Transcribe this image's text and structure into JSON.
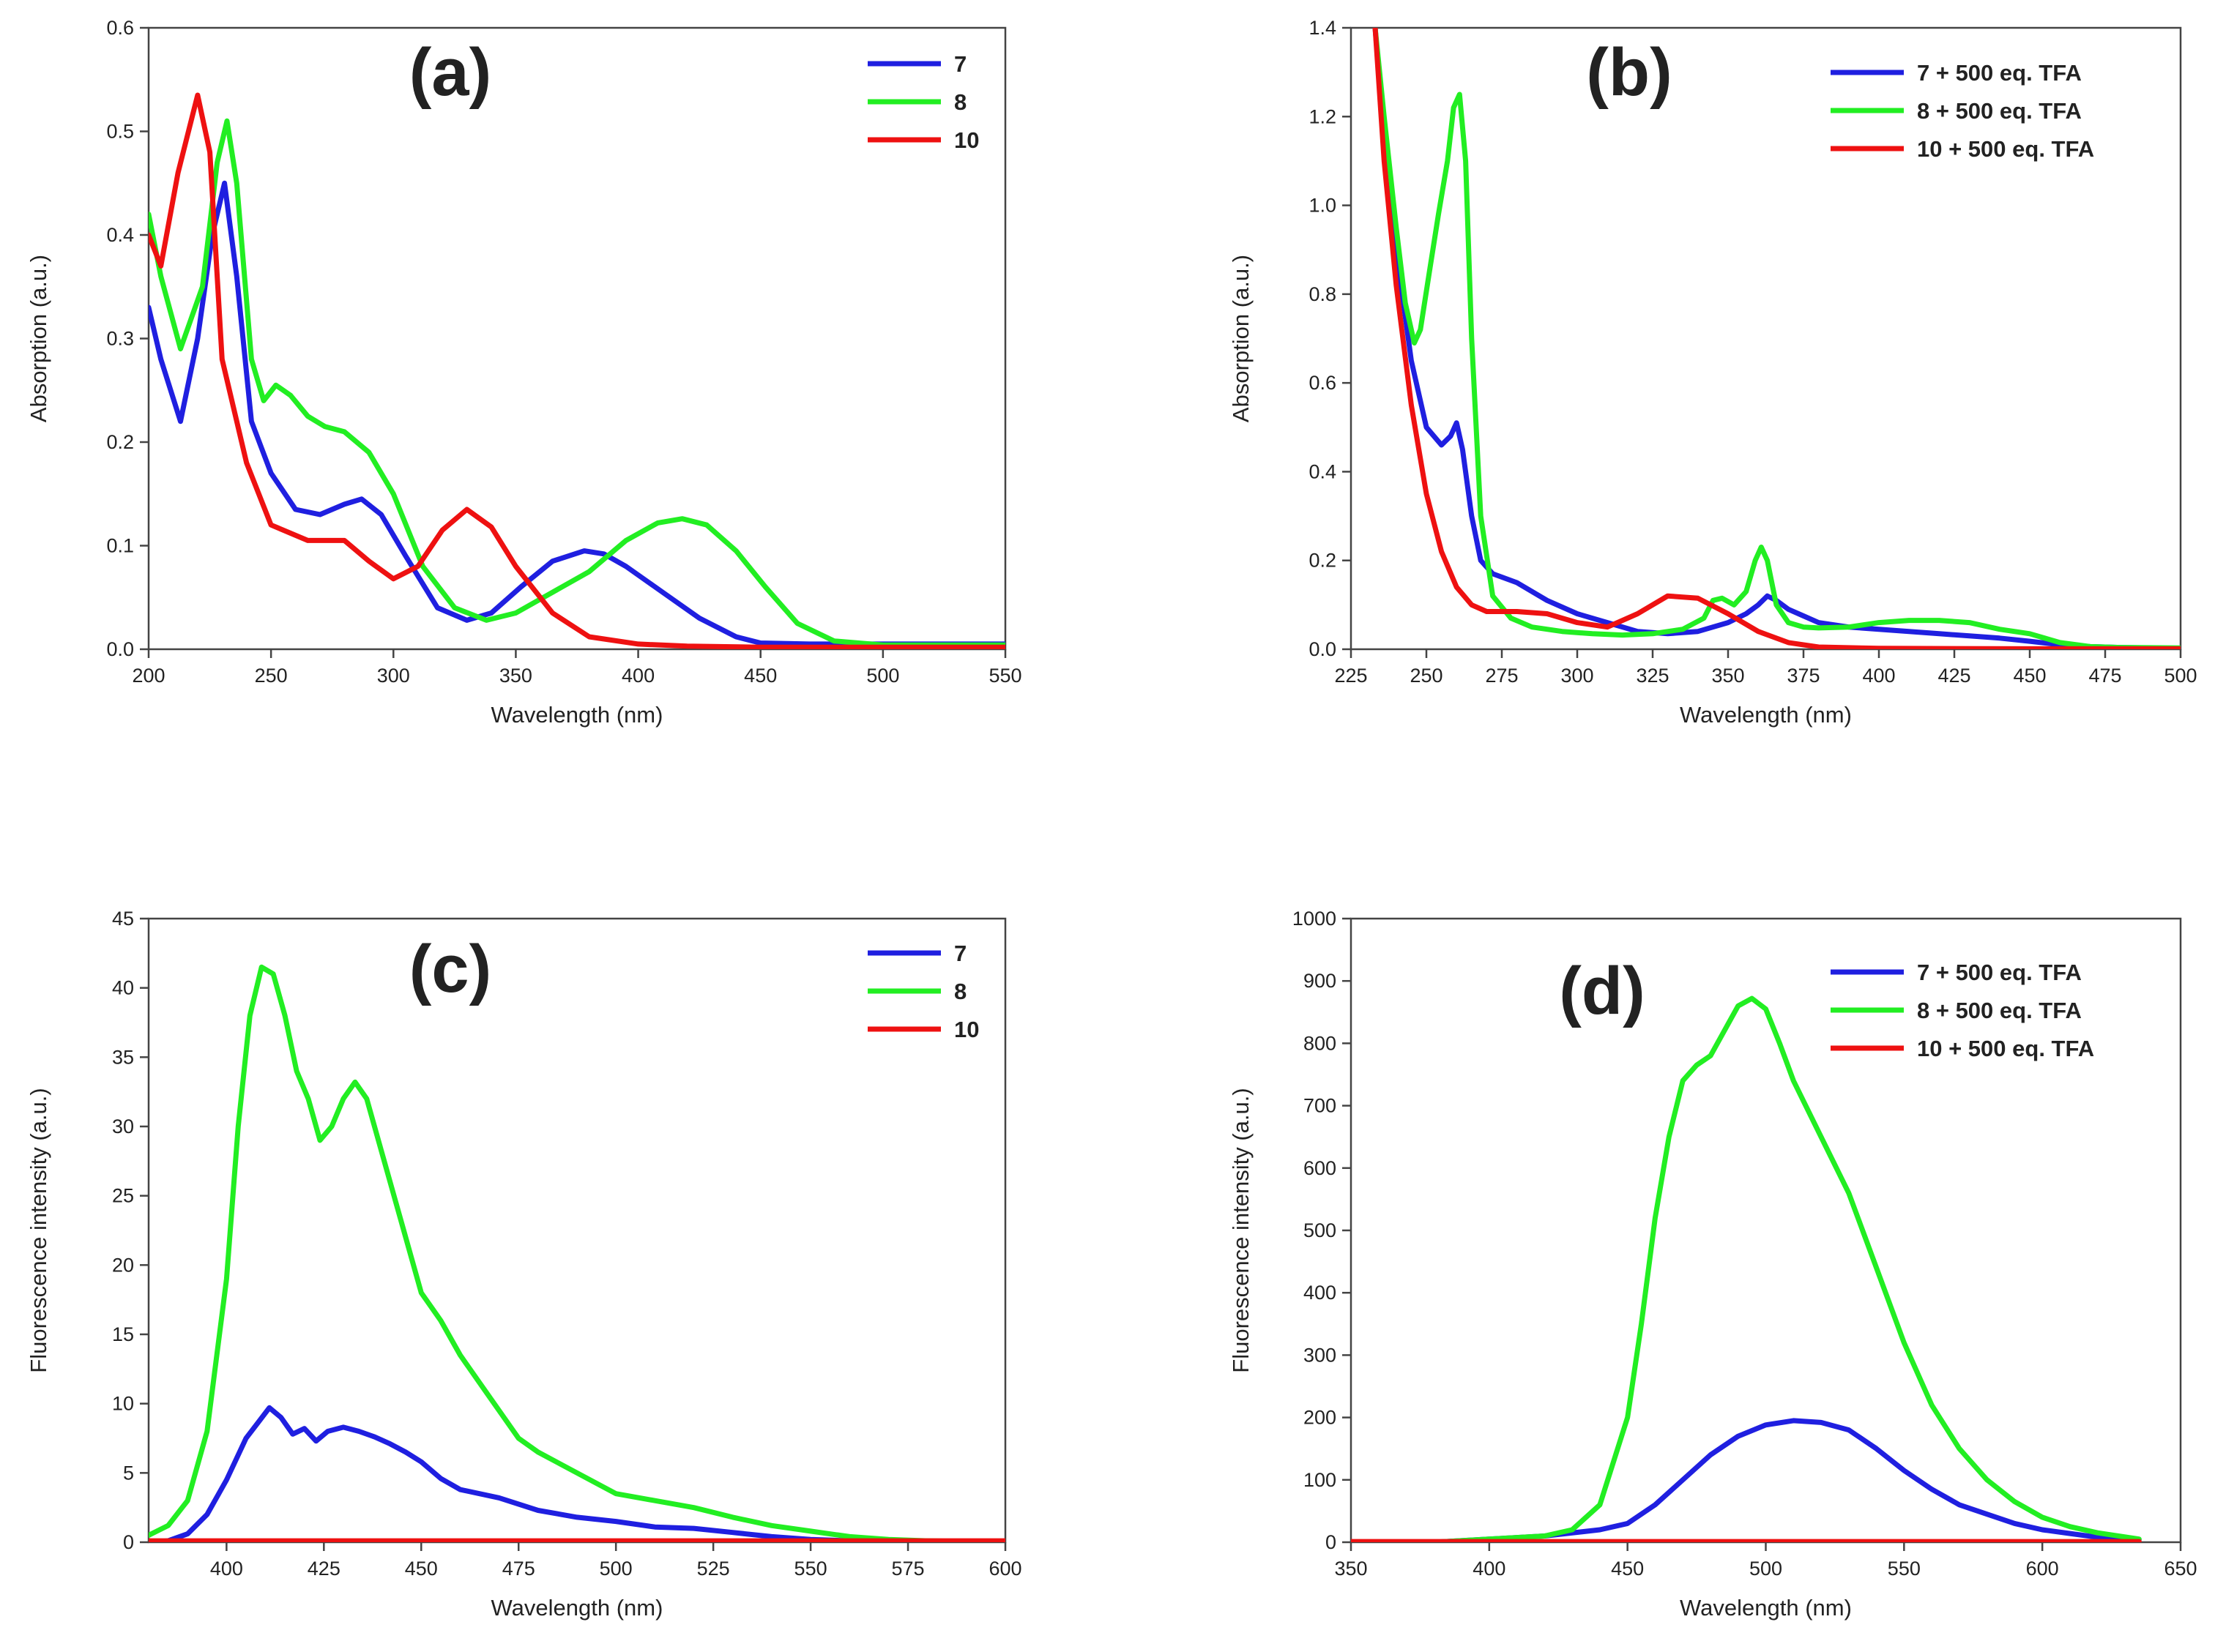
{
  "colors": {
    "blue": "#1f1fe0",
    "green": "#22ee22",
    "red": "#ee1111"
  },
  "chart_data": [
    {
      "type": "line",
      "panel_label": "(a)",
      "xlabel": "Wavelength (nm)",
      "ylabel": "Absorption (a.u.)",
      "xlim": [
        200,
        550
      ],
      "ylim": [
        0,
        0.6
      ],
      "xticks": [
        200,
        250,
        300,
        350,
        400,
        450,
        500,
        550
      ],
      "yticks": [
        0.0,
        0.1,
        0.2,
        0.3,
        0.4,
        0.5,
        0.6
      ],
      "ytick_decimals": 1,
      "legend_position": "top-right",
      "series": [
        {
          "name": "7",
          "color": "blue",
          "x": [
            200,
            205,
            213,
            220,
            226,
            231,
            236,
            242,
            250,
            260,
            270,
            280,
            287,
            295,
            305,
            318,
            330,
            340,
            352,
            365,
            378,
            386,
            395,
            410,
            425,
            440,
            450,
            470,
            500,
            550
          ],
          "y": [
            0.33,
            0.28,
            0.22,
            0.3,
            0.4,
            0.45,
            0.36,
            0.22,
            0.17,
            0.135,
            0.13,
            0.14,
            0.145,
            0.13,
            0.09,
            0.04,
            0.028,
            0.035,
            0.06,
            0.085,
            0.095,
            0.092,
            0.08,
            0.055,
            0.03,
            0.012,
            0.006,
            0.005,
            0.005,
            0.005
          ]
        },
        {
          "name": "8",
          "color": "green",
          "x": [
            200,
            205,
            213,
            222,
            228,
            232,
            236,
            242,
            247,
            252,
            258,
            265,
            272,
            280,
            290,
            300,
            312,
            325,
            338,
            350,
            365,
            380,
            395,
            408,
            418,
            428,
            440,
            452,
            465,
            480,
            500,
            550
          ],
          "y": [
            0.42,
            0.36,
            0.29,
            0.35,
            0.47,
            0.51,
            0.45,
            0.28,
            0.24,
            0.255,
            0.245,
            0.225,
            0.215,
            0.21,
            0.19,
            0.15,
            0.08,
            0.04,
            0.028,
            0.035,
            0.055,
            0.075,
            0.105,
            0.122,
            0.126,
            0.12,
            0.095,
            0.06,
            0.025,
            0.008,
            0.004,
            0.004
          ]
        },
        {
          "name": "10",
          "color": "red",
          "x": [
            200,
            205,
            212,
            220,
            225,
            230,
            240,
            250,
            265,
            280,
            290,
            300,
            310,
            320,
            330,
            340,
            350,
            365,
            380,
            400,
            420,
            450,
            500,
            550
          ],
          "y": [
            0.4,
            0.37,
            0.46,
            0.535,
            0.48,
            0.28,
            0.18,
            0.12,
            0.105,
            0.105,
            0.085,
            0.068,
            0.08,
            0.115,
            0.135,
            0.118,
            0.08,
            0.035,
            0.012,
            0.005,
            0.003,
            0.002,
            0.002,
            0.002
          ]
        }
      ]
    },
    {
      "type": "line",
      "panel_label": "(b)",
      "xlabel": "Wavelength (nm)",
      "ylabel": "Absorption (a.u.)",
      "xlim": [
        225,
        500
      ],
      "ylim": [
        0,
        1.4
      ],
      "xticks": [
        225,
        250,
        275,
        300,
        325,
        350,
        375,
        400,
        425,
        450,
        475,
        500
      ],
      "yticks": [
        0.0,
        0.2,
        0.4,
        0.6,
        0.8,
        1.0,
        1.2,
        1.4
      ],
      "ytick_decimals": 1,
      "legend_position": "top-right",
      "series": [
        {
          "name": "7 + 500 eq. TFA",
          "color": "blue",
          "x": [
            233,
            236,
            240,
            245,
            250,
            255,
            258,
            260,
            262,
            265,
            268,
            272,
            280,
            290,
            300,
            310,
            320,
            330,
            340,
            350,
            356,
            360,
            363,
            366,
            370,
            375,
            380,
            390,
            400,
            410,
            420,
            430,
            440,
            450,
            460,
            470,
            480,
            490,
            500
          ],
          "y": [
            1.4,
            1.15,
            0.9,
            0.65,
            0.5,
            0.46,
            0.48,
            0.51,
            0.45,
            0.3,
            0.2,
            0.17,
            0.15,
            0.11,
            0.08,
            0.06,
            0.04,
            0.035,
            0.04,
            0.06,
            0.08,
            0.1,
            0.12,
            0.11,
            0.09,
            0.075,
            0.06,
            0.05,
            0.045,
            0.04,
            0.035,
            0.03,
            0.025,
            0.018,
            0.01,
            0.006,
            0.004,
            0.003,
            0.002
          ]
        },
        {
          "name": "8 + 500 eq. TFA",
          "color": "green",
          "x": [
            233,
            236,
            240,
            243,
            246,
            248,
            251,
            254,
            257,
            259,
            261,
            263,
            265,
            268,
            272,
            278,
            285,
            295,
            305,
            315,
            325,
            335,
            342,
            345,
            348,
            352,
            356,
            359,
            361,
            363,
            366,
            370,
            375,
            380,
            390,
            400,
            410,
            420,
            430,
            440,
            450,
            460,
            470,
            480,
            500
          ],
          "y": [
            1.4,
            1.2,
            0.95,
            0.78,
            0.69,
            0.72,
            0.85,
            0.98,
            1.1,
            1.22,
            1.25,
            1.1,
            0.7,
            0.3,
            0.12,
            0.07,
            0.05,
            0.04,
            0.035,
            0.032,
            0.035,
            0.045,
            0.07,
            0.11,
            0.115,
            0.1,
            0.13,
            0.2,
            0.23,
            0.2,
            0.1,
            0.06,
            0.05,
            0.048,
            0.05,
            0.06,
            0.065,
            0.065,
            0.06,
            0.045,
            0.035,
            0.015,
            0.006,
            0.004,
            0.003
          ]
        },
        {
          "name": "10 + 500 eq. TFA",
          "color": "red",
          "x": [
            233,
            236,
            240,
            245,
            250,
            255,
            260,
            265,
            270,
            275,
            280,
            290,
            300,
            310,
            320,
            330,
            340,
            350,
            360,
            370,
            380,
            400,
            450,
            500
          ],
          "y": [
            1.4,
            1.1,
            0.82,
            0.55,
            0.35,
            0.22,
            0.14,
            0.1,
            0.085,
            0.085,
            0.085,
            0.08,
            0.06,
            0.05,
            0.08,
            0.12,
            0.115,
            0.08,
            0.04,
            0.015,
            0.005,
            0.002,
            0.001,
            0.001
          ]
        }
      ]
    },
    {
      "type": "line",
      "panel_label": "(c)",
      "xlabel": "Wavelength (nm)",
      "ylabel": "Fluorescence intensity (a.u.)",
      "xlim": [
        380,
        600
      ],
      "ylim": [
        0,
        45
      ],
      "xticks": [
        400,
        425,
        450,
        475,
        500,
        525,
        550,
        575,
        600
      ],
      "yticks": [
        0,
        5,
        10,
        15,
        20,
        25,
        30,
        35,
        40,
        45
      ],
      "ytick_decimals": 0,
      "legend_position": "top-right",
      "series": [
        {
          "name": "7",
          "color": "blue",
          "x": [
            380,
            385,
            390,
            395,
            400,
            405,
            408,
            411,
            414,
            417,
            420,
            423,
            426,
            430,
            434,
            438,
            442,
            446,
            450,
            455,
            460,
            470,
            480,
            490,
            500,
            510,
            520,
            530,
            540,
            550,
            560,
            575,
            600
          ],
          "y": [
            0,
            0.1,
            0.6,
            2,
            4.5,
            7.5,
            8.6,
            9.7,
            9,
            7.8,
            8.2,
            7.3,
            8,
            8.3,
            8,
            7.6,
            7.1,
            6.5,
            5.8,
            4.6,
            3.8,
            3.2,
            2.3,
            1.8,
            1.5,
            1.1,
            1.0,
            0.7,
            0.4,
            0.2,
            0.1,
            0,
            0
          ]
        },
        {
          "name": "8",
          "color": "green",
          "x": [
            380,
            385,
            390,
            395,
            400,
            403,
            406,
            409,
            412,
            415,
            418,
            421,
            424,
            427,
            430,
            433,
            436,
            440,
            445,
            450,
            455,
            460,
            465,
            470,
            475,
            480,
            490,
            500,
            510,
            520,
            530,
            540,
            550,
            560,
            570,
            580,
            600
          ],
          "y": [
            0.5,
            1.2,
            3,
            8,
            19,
            30,
            38,
            41.5,
            41,
            38,
            34,
            32,
            29,
            30,
            32,
            33.2,
            32,
            28,
            23,
            18,
            16,
            13.5,
            11.5,
            9.5,
            7.5,
            6.5,
            5,
            3.5,
            3,
            2.5,
            1.8,
            1.2,
            0.8,
            0.4,
            0.2,
            0.1,
            0
          ]
        },
        {
          "name": "10",
          "color": "red",
          "x": [
            380,
            600
          ],
          "y": [
            0.1,
            0.1
          ]
        }
      ]
    },
    {
      "type": "line",
      "panel_label": "(d)",
      "xlabel": "Wavelength (nm)",
      "ylabel": "Fluorescence intensity (a.u.)",
      "xlim": [
        350,
        650
      ],
      "ylim": [
        0,
        1000
      ],
      "xticks": [
        350,
        400,
        450,
        500,
        550,
        600,
        650
      ],
      "yticks": [
        0,
        100,
        200,
        300,
        400,
        500,
        600,
        700,
        800,
        900,
        1000
      ],
      "ytick_decimals": 0,
      "legend_position": "top-right",
      "series": [
        {
          "name": "7 + 500 eq. TFA",
          "color": "blue",
          "x": [
            380,
            400,
            420,
            440,
            450,
            460,
            470,
            480,
            490,
            500,
            510,
            520,
            530,
            540,
            550,
            560,
            570,
            580,
            590,
            600,
            610,
            620,
            635
          ],
          "y": [
            0,
            5,
            10,
            20,
            30,
            60,
            100,
            140,
            170,
            188,
            195,
            192,
            180,
            150,
            115,
            85,
            60,
            45,
            30,
            20,
            14,
            8,
            4
          ]
        },
        {
          "name": "8 + 500 eq. TFA",
          "color": "green",
          "x": [
            380,
            400,
            420,
            430,
            440,
            450,
            455,
            460,
            465,
            470,
            475,
            480,
            485,
            490,
            495,
            500,
            505,
            510,
            520,
            530,
            540,
            550,
            560,
            570,
            580,
            590,
            600,
            610,
            620,
            635
          ],
          "y": [
            0,
            5,
            10,
            20,
            60,
            200,
            350,
            520,
            650,
            740,
            765,
            780,
            820,
            860,
            872,
            855,
            800,
            740,
            650,
            560,
            440,
            320,
            220,
            150,
            100,
            65,
            40,
            25,
            15,
            5
          ]
        },
        {
          "name": "10 + 500 eq. TFA",
          "color": "red",
          "x": [
            350,
            635
          ],
          "y": [
            1,
            1
          ]
        }
      ]
    }
  ]
}
